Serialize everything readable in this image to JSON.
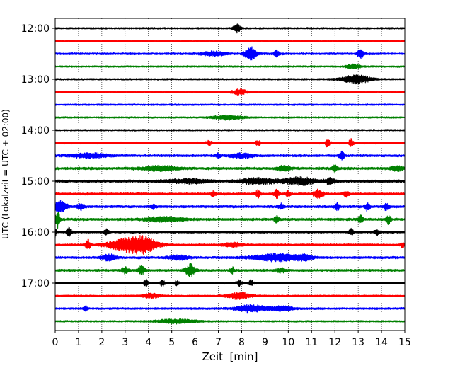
{
  "chart_data": {
    "type": "line",
    "title": "",
    "xlabel": "Zeit  [min]",
    "ylabel": "UTC (Lokalzeit = UTC + 02:00)",
    "xlim": [
      0,
      15
    ],
    "x_ticks": [
      "0",
      "1",
      "2",
      "3",
      "4",
      "5",
      "6",
      "7",
      "8",
      "9",
      "10",
      "11",
      "12",
      "13",
      "14",
      "15"
    ],
    "y_ticks": [
      "12:00",
      "13:00",
      "14:00",
      "15:00",
      "16:00",
      "17:00"
    ],
    "grid": "vertical-dotted",
    "traces_per_hour": 4,
    "trace_interval_min": 15,
    "trace_colors": [
      "#000000",
      "#ff0000",
      "#0000ff",
      "#008000"
    ],
    "traces": [
      {
        "start": "12:00",
        "color": "#000000",
        "amp": 1.0,
        "events": [
          [
            7.8,
            6,
            0.15
          ]
        ]
      },
      {
        "start": "12:15",
        "color": "#ff0000",
        "amp": 1.0,
        "events": []
      },
      {
        "start": "12:30",
        "color": "#0000ff",
        "amp": 1.3,
        "events": [
          [
            8.4,
            9,
            0.25
          ],
          [
            13.1,
            6,
            0.15
          ],
          [
            9.5,
            5,
            0.1
          ],
          [
            6.8,
            3,
            0.5
          ]
        ]
      },
      {
        "start": "12:45",
        "color": "#008000",
        "amp": 1.0,
        "events": [
          [
            12.8,
            3,
            0.3
          ]
        ]
      },
      {
        "start": "13:00",
        "color": "#000000",
        "amp": 1.0,
        "events": [
          [
            12.9,
            6,
            0.6
          ]
        ]
      },
      {
        "start": "13:15",
        "color": "#ff0000",
        "amp": 1.0,
        "events": [
          [
            7.9,
            4,
            0.3
          ]
        ]
      },
      {
        "start": "13:30",
        "color": "#0000ff",
        "amp": 1.0,
        "events": []
      },
      {
        "start": "13:45",
        "color": "#008000",
        "amp": 1.0,
        "events": [
          [
            7.4,
            3,
            0.6
          ]
        ]
      },
      {
        "start": "14:00",
        "color": "#000000",
        "amp": 1.0,
        "events": []
      },
      {
        "start": "14:15",
        "color": "#ff0000",
        "amp": 1.3,
        "events": [
          [
            11.7,
            6,
            0.1
          ],
          [
            12.7,
            5,
            0.1
          ],
          [
            8.7,
            4,
            0.1
          ],
          [
            6.6,
            3,
            0.1
          ]
        ]
      },
      {
        "start": "14:30",
        "color": "#0000ff",
        "amp": 1.4,
        "events": [
          [
            12.3,
            7,
            0.1
          ],
          [
            1.5,
            3,
            0.8
          ],
          [
            8.0,
            3,
            0.5
          ],
          [
            7.0,
            3,
            0.1
          ]
        ]
      },
      {
        "start": "14:45",
        "color": "#008000",
        "amp": 1.5,
        "events": [
          [
            12.0,
            5,
            0.1
          ],
          [
            4.5,
            3,
            0.8
          ],
          [
            9.8,
            3,
            0.3
          ],
          [
            14.7,
            3,
            0.3
          ]
        ]
      },
      {
        "start": "15:00",
        "color": "#000000",
        "amp": 1.6,
        "events": [
          [
            10.5,
            5,
            0.7
          ],
          [
            8.7,
            4,
            0.8
          ],
          [
            5.7,
            3,
            0.8
          ],
          [
            11.8,
            4,
            0.2
          ]
        ]
      },
      {
        "start": "15:15",
        "color": "#ff0000",
        "amp": 1.4,
        "events": [
          [
            11.3,
            6,
            0.2
          ],
          [
            9.5,
            6,
            0.1
          ],
          [
            8.7,
            5,
            0.1
          ],
          [
            10.0,
            4,
            0.1
          ],
          [
            6.8,
            4,
            0.1
          ],
          [
            12.5,
            4,
            0.1
          ]
        ]
      },
      {
        "start": "15:30",
        "color": "#0000ff",
        "amp": 1.5,
        "events": [
          [
            0.2,
            8,
            0.3
          ],
          [
            1.1,
            5,
            0.15
          ],
          [
            12.1,
            6,
            0.1
          ],
          [
            13.4,
            6,
            0.1
          ],
          [
            14.2,
            5,
            0.1
          ],
          [
            9.7,
            4,
            0.1
          ],
          [
            4.2,
            3,
            0.1
          ]
        ]
      },
      {
        "start": "15:45",
        "color": "#008000",
        "amp": 1.5,
        "events": [
          [
            0.1,
            12,
            0.1
          ],
          [
            14.3,
            6,
            0.1
          ],
          [
            13.1,
            5,
            0.1
          ],
          [
            4.7,
            3,
            0.8
          ],
          [
            9.5,
            4,
            0.1
          ]
        ]
      },
      {
        "start": "16:00",
        "color": "#000000",
        "amp": 1.3,
        "events": [
          [
            0.6,
            6,
            0.1
          ],
          [
            2.2,
            4,
            0.1
          ],
          [
            12.7,
            4,
            0.1
          ],
          [
            13.8,
            4,
            0.1
          ],
          [
            0.0,
            7,
            0.05
          ]
        ]
      },
      {
        "start": "16:15",
        "color": "#ff0000",
        "amp": 1.3,
        "events": [
          [
            3.3,
            11,
            0.9
          ],
          [
            1.4,
            7,
            0.1
          ],
          [
            3.9,
            5,
            0.4
          ],
          [
            7.6,
            3,
            0.4
          ],
          [
            14.9,
            3,
            0.1
          ]
        ]
      },
      {
        "start": "16:30",
        "color": "#0000ff",
        "amp": 1.4,
        "events": [
          [
            9.5,
            5,
            1.0
          ],
          [
            2.3,
            4,
            0.3
          ],
          [
            5.3,
            3,
            0.4
          ],
          [
            10.7,
            3,
            0.3
          ]
        ]
      },
      {
        "start": "16:45",
        "color": "#008000",
        "amp": 1.4,
        "events": [
          [
            5.8,
            9,
            0.2
          ],
          [
            3.7,
            6,
            0.15
          ],
          [
            3.0,
            4,
            0.15
          ],
          [
            7.6,
            4,
            0.1
          ],
          [
            9.7,
            3,
            0.2
          ]
        ]
      },
      {
        "start": "17:00",
        "color": "#000000",
        "amp": 1.2,
        "events": [
          [
            7.9,
            5,
            0.1
          ],
          [
            3.9,
            5,
            0.1
          ],
          [
            4.6,
            4,
            0.1
          ],
          [
            8.4,
            4,
            0.1
          ],
          [
            5.2,
            3,
            0.1
          ]
        ]
      },
      {
        "start": "17:15",
        "color": "#ff0000",
        "amp": 1.0,
        "events": [
          [
            7.9,
            5,
            0.5
          ],
          [
            4.1,
            3,
            0.4
          ]
        ]
      },
      {
        "start": "17:30",
        "color": "#0000ff",
        "amp": 1.2,
        "events": [
          [
            8.4,
            5,
            0.6
          ],
          [
            1.3,
            4,
            0.1
          ],
          [
            9.7,
            3,
            0.5
          ]
        ]
      },
      {
        "start": "17:45",
        "color": "#008000",
        "amp": 1.0,
        "events": [
          [
            5.2,
            3,
            0.8
          ]
        ]
      }
    ]
  }
}
